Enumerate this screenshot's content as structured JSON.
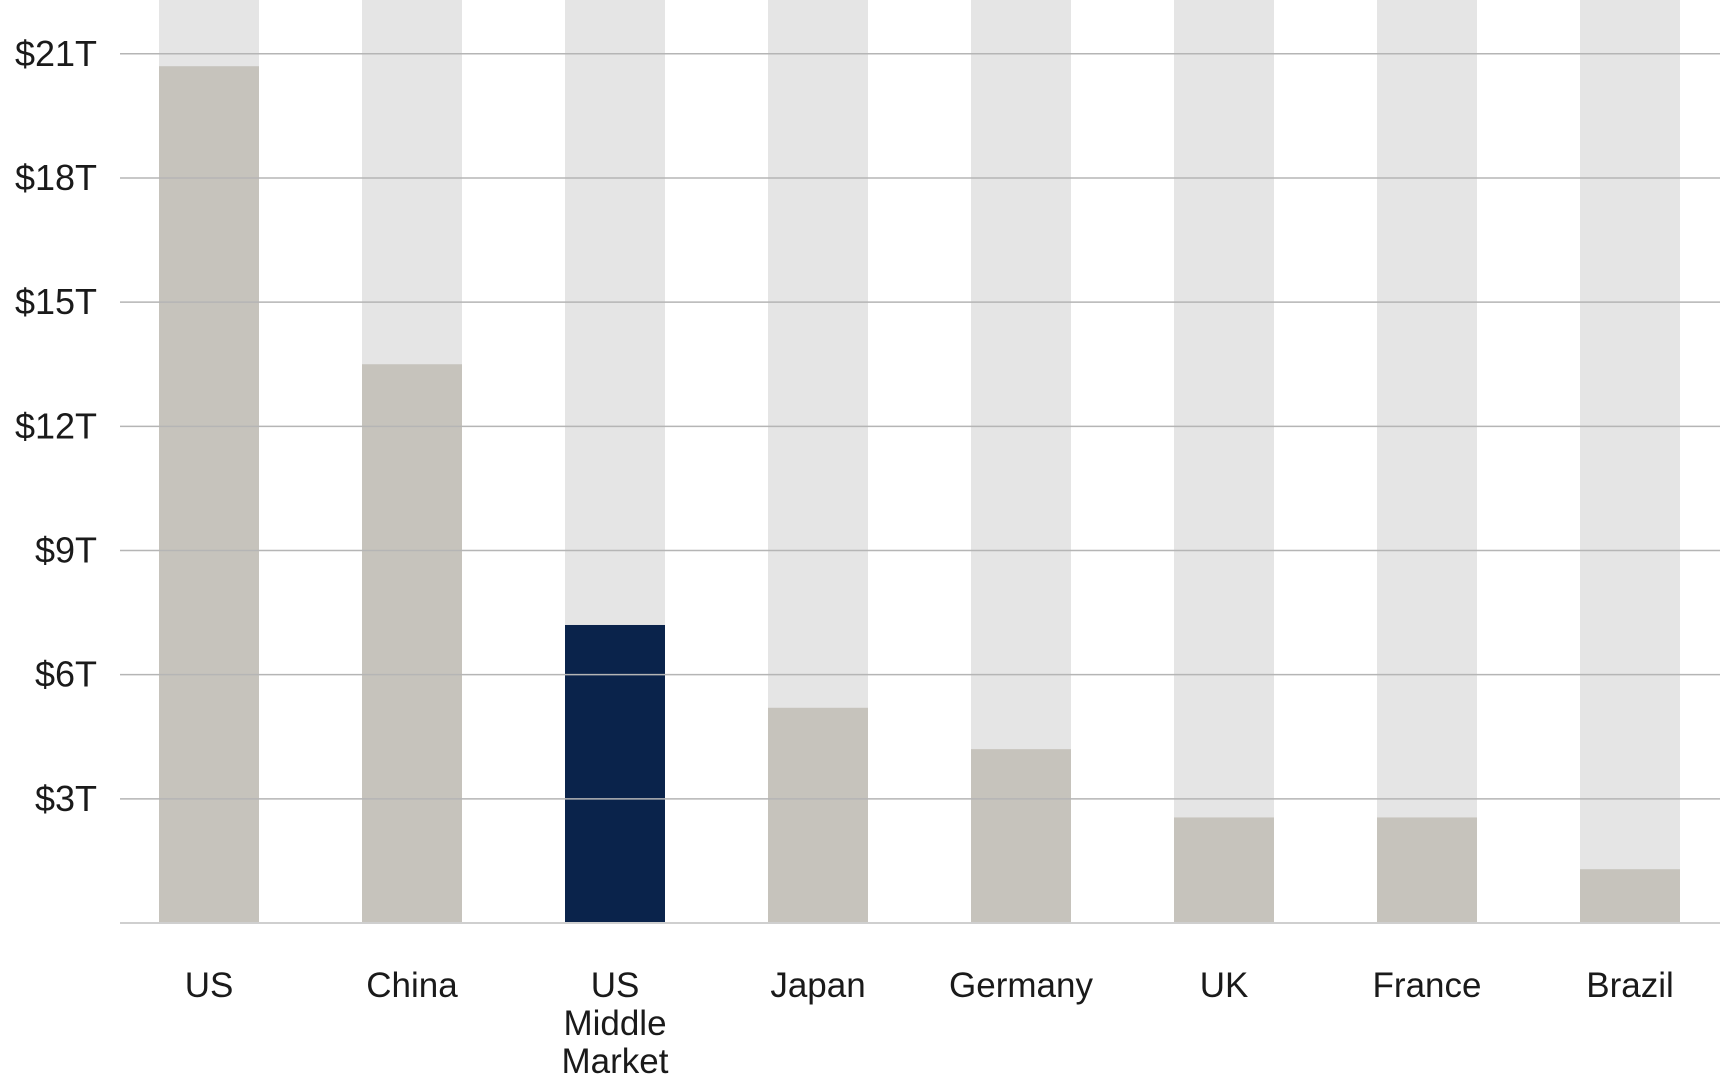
{
  "chart_data": {
    "type": "bar",
    "title": "",
    "xlabel": "",
    "ylabel": "",
    "categories": [
      "US",
      "China",
      "US Middle Market",
      "Japan",
      "Germany",
      "UK",
      "France",
      "Brazil"
    ],
    "category_lines": [
      [
        "US"
      ],
      [
        "China"
      ],
      [
        "US",
        "Middle",
        "Market"
      ],
      [
        "Japan"
      ],
      [
        "Germany"
      ],
      [
        "UK"
      ],
      [
        "France"
      ],
      [
        "Brazil"
      ]
    ],
    "values": [
      20.7,
      13.5,
      7.2,
      5.2,
      4.2,
      2.55,
      2.55,
      1.3
    ],
    "highlight_index": 2,
    "ylim": [
      0,
      22.3
    ],
    "yticks": [
      3,
      6,
      9,
      12,
      15,
      18,
      21
    ],
    "ytick_labels": [
      "$3T",
      "$6T",
      "$9T",
      "$12T",
      "$15T",
      "$18T",
      "$21T"
    ],
    "grid": true,
    "background_bars": true
  },
  "colors": {
    "bar": "#c6c3bc",
    "highlight": "#0a234b",
    "track": "#e5e5e5",
    "grid": "#b5b5b5",
    "axis": "#cfcfcf"
  }
}
